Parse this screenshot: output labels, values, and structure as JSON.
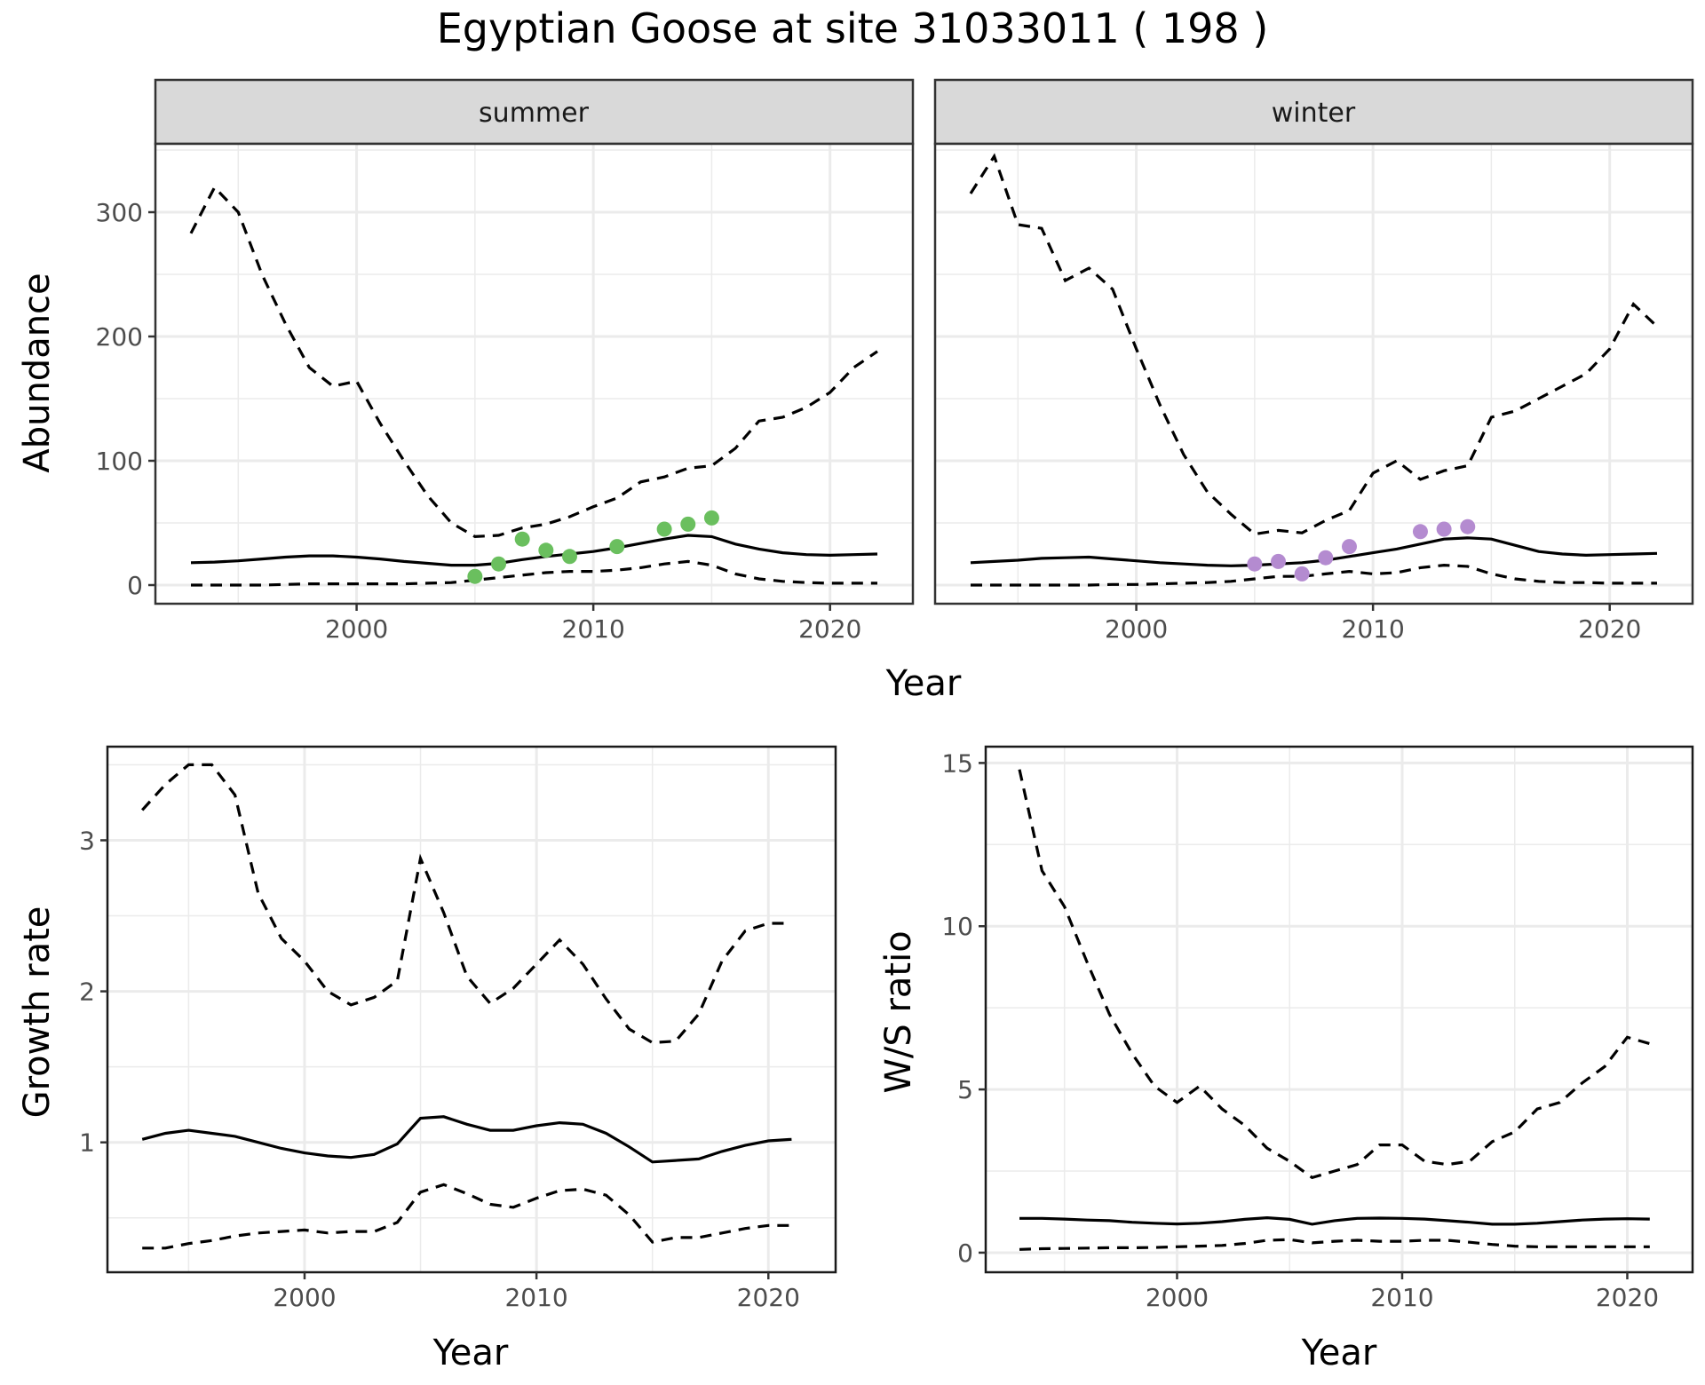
{
  "title": "Egyptian Goose at site 31033011 ( 198 )",
  "colors": {
    "summer_points": "#6abf5e",
    "winter_points": "#b48bd0",
    "line": "#000000",
    "grid": "#ebebeb",
    "strip_bg": "#d9d9d9"
  },
  "chart_data": [
    {
      "id": "abundance-summer",
      "type": "line",
      "strip": "summer",
      "xlabel": "Year",
      "ylabel": "Abundance",
      "xlim": [
        1991.5,
        2023.5
      ],
      "ylim": [
        -15,
        355
      ],
      "xticks": [
        2000,
        2010,
        2020
      ],
      "yticks": [
        0,
        100,
        200,
        300
      ],
      "grid": true,
      "show_y_ticks": true,
      "show_x_ticks": true,
      "series": [
        {
          "style": "solid",
          "x": [
            1993,
            1994,
            1995,
            1996,
            1997,
            1998,
            1999,
            2000,
            2001,
            2002,
            2003,
            2004,
            2005,
            2006,
            2007,
            2008,
            2009,
            2010,
            2011,
            2012,
            2013,
            2014,
            2015,
            2016,
            2017,
            2018,
            2019,
            2020,
            2021,
            2022
          ],
          "y": [
            18,
            18.5,
            19.5,
            21,
            22.5,
            23.5,
            23.5,
            22.5,
            21,
            19,
            17.5,
            16,
            16,
            17.5,
            20.5,
            23,
            25,
            27,
            30,
            33.5,
            37,
            40,
            39,
            33,
            29,
            26,
            24.5,
            24,
            24.5,
            25
          ]
        },
        {
          "style": "dashed",
          "x": [
            1993,
            1994,
            1995,
            1996,
            1997,
            1998,
            1999,
            2000,
            2001,
            2002,
            2003,
            2004,
            2005,
            2006,
            2007,
            2008,
            2009,
            2010,
            2011,
            2012,
            2013,
            2014,
            2015,
            2016,
            2017,
            2018,
            2019,
            2020,
            2021,
            2022
          ],
          "y": [
            283,
            320,
            300,
            250,
            210,
            175,
            160,
            164,
            130,
            100,
            72,
            50,
            39,
            40,
            46,
            49,
            55,
            63,
            70,
            83,
            87,
            94,
            96,
            110,
            132,
            135,
            143,
            155,
            175,
            188
          ]
        },
        {
          "style": "dashed",
          "x": [
            1993,
            1994,
            1995,
            1996,
            1997,
            1998,
            1999,
            2000,
            2001,
            2002,
            2003,
            2004,
            2005,
            2006,
            2007,
            2008,
            2009,
            2010,
            2011,
            2012,
            2013,
            2014,
            2015,
            2016,
            2017,
            2018,
            2019,
            2020,
            2021,
            2022
          ],
          "y": [
            0,
            0,
            0,
            0,
            0.5,
            1,
            1,
            1,
            1,
            1,
            1.5,
            2,
            4,
            6,
            8,
            10,
            11,
            11,
            12,
            14,
            17,
            19,
            16,
            9,
            5,
            3,
            2,
            1.5,
            1.5,
            1.5
          ]
        }
      ],
      "points": {
        "color": "summer",
        "x": [
          2005,
          2006,
          2007,
          2008,
          2009,
          2011,
          2013,
          2014,
          2015
        ],
        "y": [
          7,
          17,
          37,
          28,
          23,
          31,
          45,
          49,
          54
        ]
      }
    },
    {
      "id": "abundance-winter",
      "type": "line",
      "strip": "winter",
      "xlabel": "",
      "ylabel": "",
      "xlim": [
        1991.5,
        2023.5
      ],
      "ylim": [
        -15,
        355
      ],
      "xticks": [
        2000,
        2010,
        2020
      ],
      "yticks": [
        0,
        100,
        200,
        300
      ],
      "grid": true,
      "show_y_ticks": false,
      "show_x_ticks": true,
      "series": [
        {
          "style": "solid",
          "x": [
            1993,
            1994,
            1995,
            1996,
            1997,
            1998,
            1999,
            2000,
            2001,
            2002,
            2003,
            2004,
            2005,
            2006,
            2007,
            2008,
            2009,
            2010,
            2011,
            2012,
            2013,
            2014,
            2015,
            2016,
            2017,
            2018,
            2019,
            2020,
            2021,
            2022
          ],
          "y": [
            18,
            19,
            20,
            21.5,
            22,
            22.5,
            21,
            19.5,
            18,
            17,
            16,
            15.5,
            16,
            17,
            18,
            20,
            23,
            26,
            29,
            33,
            37,
            38,
            37,
            32,
            27,
            25,
            24,
            24.5,
            25,
            25.5
          ]
        },
        {
          "style": "dashed",
          "x": [
            1993,
            1994,
            1995,
            1996,
            1997,
            1998,
            1999,
            2000,
            2001,
            2002,
            2003,
            2004,
            2005,
            2006,
            2007,
            2008,
            2009,
            2010,
            2011,
            2012,
            2013,
            2014,
            2015,
            2016,
            2017,
            2018,
            2019,
            2020,
            2021,
            2022
          ],
          "y": [
            315,
            345,
            290,
            287,
            245,
            255,
            238,
            190,
            145,
            105,
            75,
            57,
            41,
            44,
            42,
            52,
            60,
            90,
            100,
            85,
            92,
            96,
            135,
            140,
            150,
            160,
            170,
            190,
            226,
            208
          ]
        },
        {
          "style": "dashed",
          "x": [
            1993,
            1994,
            1995,
            1996,
            1997,
            1998,
            1999,
            2000,
            2001,
            2002,
            2003,
            2004,
            2005,
            2006,
            2007,
            2008,
            2009,
            2010,
            2011,
            2012,
            2013,
            2014,
            2015,
            2016,
            2017,
            2018,
            2019,
            2020,
            2021,
            2022
          ],
          "y": [
            0,
            0,
            0,
            0,
            0,
            0,
            0.5,
            0.5,
            1,
            1.5,
            2,
            3,
            5,
            7,
            7,
            9,
            11,
            9,
            10,
            14,
            16,
            15,
            9,
            5,
            3,
            2,
            2,
            1.5,
            1.5,
            1.5
          ]
        }
      ],
      "points": {
        "color": "winter",
        "x": [
          2005,
          2006,
          2007,
          2008,
          2009,
          2012,
          2013,
          2014
        ],
        "y": [
          17,
          19,
          9,
          22,
          31,
          43,
          45,
          47
        ]
      }
    },
    {
      "id": "growth-rate",
      "type": "line",
      "strip": "",
      "xlabel": "Year",
      "ylabel": "Growth rate",
      "xlim": [
        1991.5,
        2022.9
      ],
      "ylim": [
        0.14,
        3.62
      ],
      "xticks": [
        2000,
        2010,
        2020
      ],
      "yticks": [
        1,
        2,
        3
      ],
      "grid": true,
      "show_y_ticks": true,
      "show_x_ticks": true,
      "series": [
        {
          "style": "solid",
          "x": [
            1993,
            1994,
            1995,
            1996,
            1997,
            1998,
            1999,
            2000,
            2001,
            2002,
            2003,
            2004,
            2005,
            2006,
            2007,
            2008,
            2009,
            2010,
            2011,
            2012,
            2013,
            2014,
            2015,
            2016,
            2017,
            2018,
            2019,
            2020,
            2021
          ],
          "y": [
            1.02,
            1.06,
            1.08,
            1.06,
            1.04,
            1.0,
            0.96,
            0.93,
            0.91,
            0.9,
            0.92,
            0.99,
            1.16,
            1.17,
            1.12,
            1.08,
            1.08,
            1.11,
            1.13,
            1.12,
            1.06,
            0.97,
            0.87,
            0.88,
            0.89,
            0.94,
            0.98,
            1.01,
            1.02
          ]
        },
        {
          "style": "dashed",
          "x": [
            1993,
            1994,
            1995,
            1996,
            1997,
            1998,
            1999,
            2000,
            2001,
            2002,
            2003,
            2004,
            2005,
            2006,
            2007,
            2008,
            2009,
            2010,
            2011,
            2012,
            2013,
            2014,
            2015,
            2016,
            2017,
            2018,
            2019,
            2020,
            2021
          ],
          "y": [
            3.2,
            3.37,
            3.5,
            3.5,
            3.3,
            2.65,
            2.35,
            2.2,
            2.0,
            1.91,
            1.96,
            2.07,
            2.88,
            2.52,
            2.1,
            1.92,
            2.02,
            2.18,
            2.34,
            2.18,
            1.95,
            1.75,
            1.66,
            1.67,
            1.85,
            2.2,
            2.4,
            2.45,
            2.45
          ]
        },
        {
          "style": "dashed",
          "x": [
            1993,
            1994,
            1995,
            1996,
            1997,
            1998,
            1999,
            2000,
            2001,
            2002,
            2003,
            2004,
            2005,
            2006,
            2007,
            2008,
            2009,
            2010,
            2011,
            2012,
            2013,
            2014,
            2015,
            2016,
            2017,
            2018,
            2019,
            2020,
            2021
          ],
          "y": [
            0.3,
            0.3,
            0.33,
            0.35,
            0.38,
            0.4,
            0.41,
            0.42,
            0.4,
            0.41,
            0.41,
            0.47,
            0.67,
            0.72,
            0.66,
            0.59,
            0.57,
            0.63,
            0.68,
            0.69,
            0.65,
            0.52,
            0.34,
            0.37,
            0.37,
            0.4,
            0.43,
            0.45,
            0.45
          ]
        }
      ]
    },
    {
      "id": "ws-ratio",
      "type": "line",
      "strip": "",
      "xlabel": "Year",
      "ylabel": "W/S ratio",
      "xlim": [
        1991.5,
        2022.9
      ],
      "ylim": [
        -0.6,
        15.5
      ],
      "xticks": [
        2000,
        2010,
        2020
      ],
      "yticks": [
        0,
        5,
        10,
        15
      ],
      "grid": true,
      "show_y_ticks": true,
      "show_x_ticks": true,
      "series": [
        {
          "style": "solid",
          "x": [
            1993,
            1994,
            1995,
            1996,
            1997,
            1998,
            1999,
            2000,
            2001,
            2002,
            2003,
            2004,
            2005,
            2006,
            2007,
            2008,
            2009,
            2010,
            2011,
            2012,
            2013,
            2014,
            2015,
            2016,
            2017,
            2018,
            2019,
            2020,
            2021
          ],
          "y": [
            1.05,
            1.05,
            1.03,
            1.0,
            0.98,
            0.93,
            0.9,
            0.88,
            0.9,
            0.95,
            1.02,
            1.07,
            1.02,
            0.87,
            0.98,
            1.05,
            1.06,
            1.05,
            1.03,
            0.98,
            0.93,
            0.87,
            0.87,
            0.9,
            0.95,
            1.0,
            1.03,
            1.04,
            1.03
          ]
        },
        {
          "style": "dashed",
          "x": [
            1993,
            1994,
            1995,
            1996,
            1997,
            1998,
            1999,
            2000,
            2001,
            2002,
            2003,
            2004,
            2005,
            2006,
            2007,
            2008,
            2009,
            2010,
            2011,
            2012,
            2013,
            2014,
            2015,
            2016,
            2017,
            2018,
            2019,
            2020,
            2021
          ],
          "y": [
            14.8,
            11.7,
            10.6,
            8.9,
            7.3,
            6.1,
            5.1,
            4.6,
            5.1,
            4.4,
            3.9,
            3.2,
            2.8,
            2.3,
            2.5,
            2.7,
            3.3,
            3.3,
            2.8,
            2.7,
            2.8,
            3.4,
            3.7,
            4.4,
            4.6,
            5.2,
            5.7,
            6.6,
            6.4
          ]
        },
        {
          "style": "dashed",
          "x": [
            1993,
            1994,
            1995,
            1996,
            1997,
            1998,
            1999,
            2000,
            2001,
            2002,
            2003,
            2004,
            2005,
            2006,
            2007,
            2008,
            2009,
            2010,
            2011,
            2012,
            2013,
            2014,
            2015,
            2016,
            2017,
            2018,
            2019,
            2020,
            2021
          ],
          "y": [
            0.1,
            0.12,
            0.13,
            0.14,
            0.15,
            0.15,
            0.16,
            0.18,
            0.2,
            0.22,
            0.28,
            0.38,
            0.4,
            0.3,
            0.35,
            0.38,
            0.35,
            0.35,
            0.38,
            0.38,
            0.32,
            0.25,
            0.2,
            0.18,
            0.18,
            0.18,
            0.18,
            0.18,
            0.18
          ]
        }
      ]
    }
  ]
}
